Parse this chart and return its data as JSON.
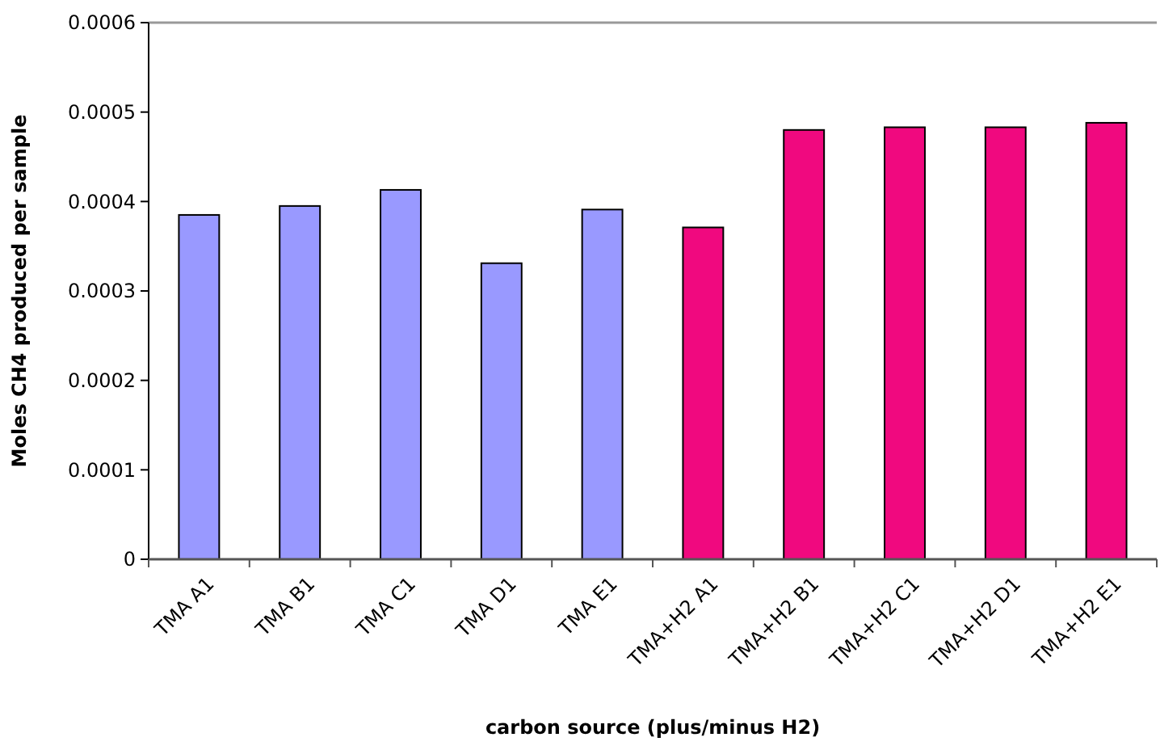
{
  "chart_data": {
    "type": "bar",
    "xlabel": "carbon source (plus/minus H2)",
    "ylabel": "Moles CH4 produced per sample",
    "categories": [
      "TMA A1",
      "TMA B1",
      "TMA C1",
      "TMA D1",
      "TMA E1",
      "TMA+H2 A1",
      "TMA+H2 B1",
      "TMA+H2 C1",
      "TMA+H2 D1",
      "TMA+H2 E1"
    ],
    "values": [
      0.000385,
      0.000395,
      0.000413,
      0.000331,
      0.000391,
      0.000371,
      0.00048,
      0.000483,
      0.000483,
      0.000488
    ],
    "colors": [
      "#9999ff",
      "#9999ff",
      "#9999ff",
      "#9999ff",
      "#9999ff",
      "#f0097f",
      "#f0097f",
      "#f0097f",
      "#f0097f",
      "#f0097f"
    ],
    "ylim": [
      0,
      0.0006
    ],
    "yticks": [
      0,
      0.0001,
      0.0002,
      0.0003,
      0.0004,
      0.0005,
      0.0006
    ],
    "grid": false
  }
}
